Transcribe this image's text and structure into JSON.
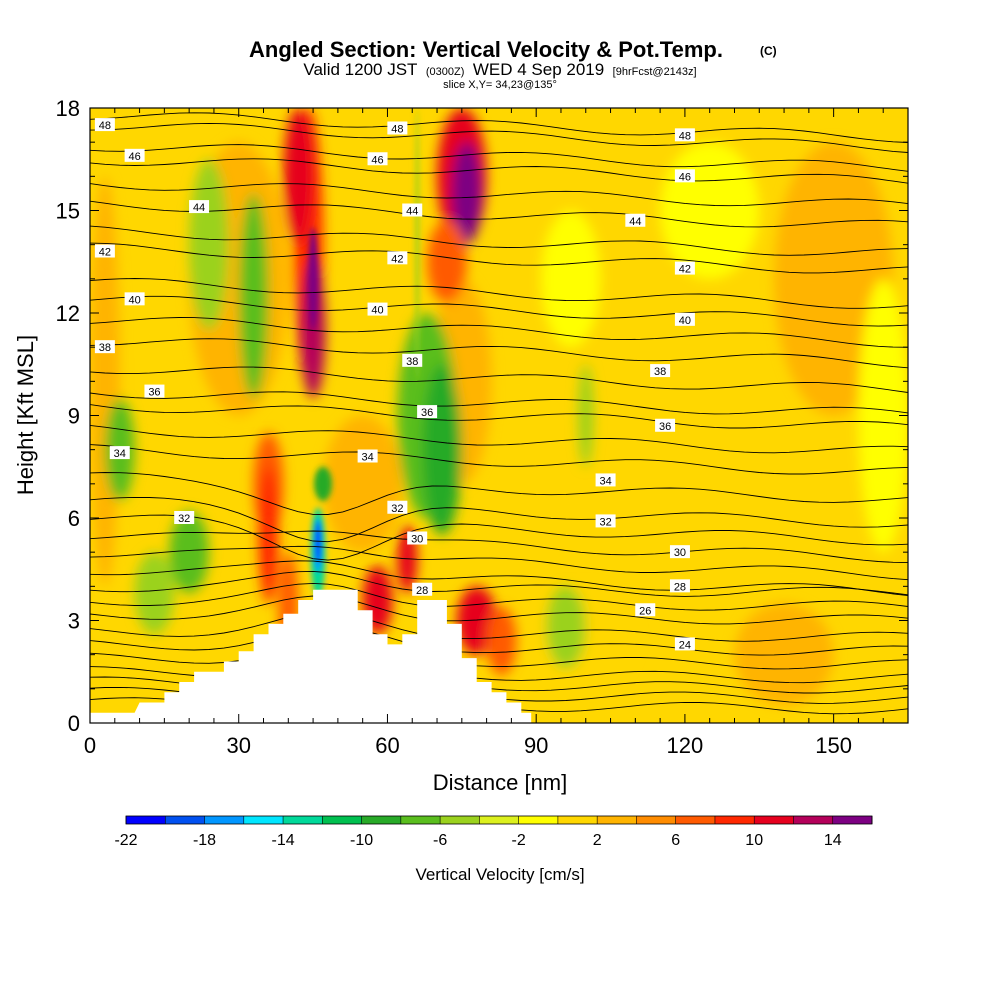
{
  "header": {
    "title": "Angled Section: Vertical Velocity & Pot.Temp.",
    "title_units": "(C)",
    "valid_prefix": "Valid 1200 JST",
    "valid_utc": "(0300Z)",
    "valid_date": "WED 4 Sep 2019",
    "forecast": "[9hrFcst@2143z]",
    "slice": "slice X,Y= 34,23@135°"
  },
  "chart_data": {
    "type": "heatmap",
    "xlabel": "Distance [nm]",
    "ylabel": "Height [Kft MSL]",
    "xlim": [
      0,
      165
    ],
    "ylim": [
      0,
      18
    ],
    "xticks": [
      0,
      30,
      60,
      90,
      120,
      150
    ],
    "yticks": [
      0,
      3,
      6,
      9,
      12,
      15,
      18
    ],
    "colorbar": {
      "label": "Vertical Velocity [cm/s]",
      "range": [
        -22,
        16
      ],
      "step": 2,
      "tick_labels": [
        "-22",
        "-18",
        "-14",
        "-10",
        "-6",
        "-2",
        "2",
        "6",
        "10",
        "14"
      ],
      "colors": [
        "#0000ff",
        "#0050f0",
        "#0096ff",
        "#00e6ff",
        "#00d99a",
        "#00c050",
        "#28aa28",
        "#5abe1e",
        "#9bd21e",
        "#dcf01e",
        "#ffff00",
        "#ffd700",
        "#ffb400",
        "#ff8c00",
        "#ff5a00",
        "#ff2800",
        "#e6001e",
        "#b4005a",
        "#7d0082"
      ]
    },
    "terrain": [
      [
        0,
        0.3
      ],
      [
        9,
        0.3
      ],
      [
        10,
        0.6
      ],
      [
        15,
        0.6
      ],
      [
        15,
        0.9
      ],
      [
        18,
        0.9
      ],
      [
        18,
        1.2
      ],
      [
        21,
        1.2
      ],
      [
        21,
        1.5
      ],
      [
        27,
        1.5
      ],
      [
        27,
        1.8
      ],
      [
        30,
        1.8
      ],
      [
        30,
        2.1
      ],
      [
        33,
        2.1
      ],
      [
        33,
        2.6
      ],
      [
        36,
        2.6
      ],
      [
        36,
        2.9
      ],
      [
        39,
        2.9
      ],
      [
        39,
        3.2
      ],
      [
        42,
        3.2
      ],
      [
        42,
        3.6
      ],
      [
        45,
        3.6
      ],
      [
        45,
        3.9
      ],
      [
        54,
        3.9
      ],
      [
        54,
        3.3
      ],
      [
        57,
        3.3
      ],
      [
        57,
        2.6
      ],
      [
        60,
        2.6
      ],
      [
        60,
        2.3
      ],
      [
        63,
        2.3
      ],
      [
        63,
        2.6
      ],
      [
        66,
        2.6
      ],
      [
        66,
        3.6
      ],
      [
        72,
        3.6
      ],
      [
        72,
        2.9
      ],
      [
        75,
        2.9
      ],
      [
        75,
        1.9
      ],
      [
        78,
        1.9
      ],
      [
        78,
        1.2
      ],
      [
        81,
        1.2
      ],
      [
        81,
        0.9
      ],
      [
        84,
        0.9
      ],
      [
        84,
        0.6
      ],
      [
        87,
        0.6
      ],
      [
        87,
        0.3
      ],
      [
        89,
        0.3
      ],
      [
        89,
        0
      ]
    ],
    "theta_contours": [
      {
        "label": "48",
        "level": 17.5,
        "label_positions": [
          [
            3,
            17.5
          ],
          [
            62,
            17.4
          ],
          [
            120,
            17.2
          ]
        ]
      },
      {
        "label": "46",
        "level": 16.5,
        "label_positions": [
          [
            9,
            16.6
          ],
          [
            58,
            16.5
          ],
          [
            120,
            16.0
          ]
        ]
      },
      {
        "label": "44",
        "level": 15.2,
        "label_positions": [
          [
            22,
            15.1
          ],
          [
            65,
            15.0
          ],
          [
            110,
            14.7
          ]
        ]
      },
      {
        "label": "42",
        "level": 13.9,
        "label_positions": [
          [
            3,
            13.8
          ],
          [
            62,
            13.6
          ],
          [
            120,
            13.3
          ]
        ]
      },
      {
        "label": "40",
        "level": 12.4,
        "label_positions": [
          [
            9,
            12.4
          ],
          [
            58,
            12.1
          ],
          [
            120,
            11.8
          ]
        ]
      },
      {
        "label": "38",
        "level": 11.2,
        "label_positions": [
          [
            3,
            11.0
          ],
          [
            65,
            10.6
          ],
          [
            115,
            10.3
          ]
        ]
      },
      {
        "label": "36",
        "level": 9.7,
        "label_positions": [
          [
            13,
            9.7
          ],
          [
            68,
            9.1
          ],
          [
            116,
            8.7
          ]
        ]
      },
      {
        "label": "34",
        "level": 8.0,
        "label_positions": [
          [
            6,
            7.9
          ],
          [
            56,
            7.8
          ],
          [
            104,
            7.1
          ]
        ]
      },
      {
        "label": "32",
        "level": 6.0,
        "label_positions": [
          [
            19,
            6.0
          ],
          [
            62,
            6.3
          ],
          [
            104,
            5.9
          ]
        ]
      },
      {
        "label": "30",
        "level": 5.0,
        "label_positions": [
          [
            66,
            5.4
          ],
          [
            119,
            5.0
          ]
        ]
      },
      {
        "label": "28",
        "level": 4.0,
        "label_positions": [
          [
            67,
            3.9
          ],
          [
            119,
            4.0
          ]
        ]
      },
      {
        "label": "26",
        "level": 3.2,
        "label_positions": [
          [
            112,
            3.3
          ]
        ]
      },
      {
        "label": "24",
        "level": 2.3,
        "label_positions": [
          [
            120,
            2.3
          ]
        ]
      }
    ]
  }
}
